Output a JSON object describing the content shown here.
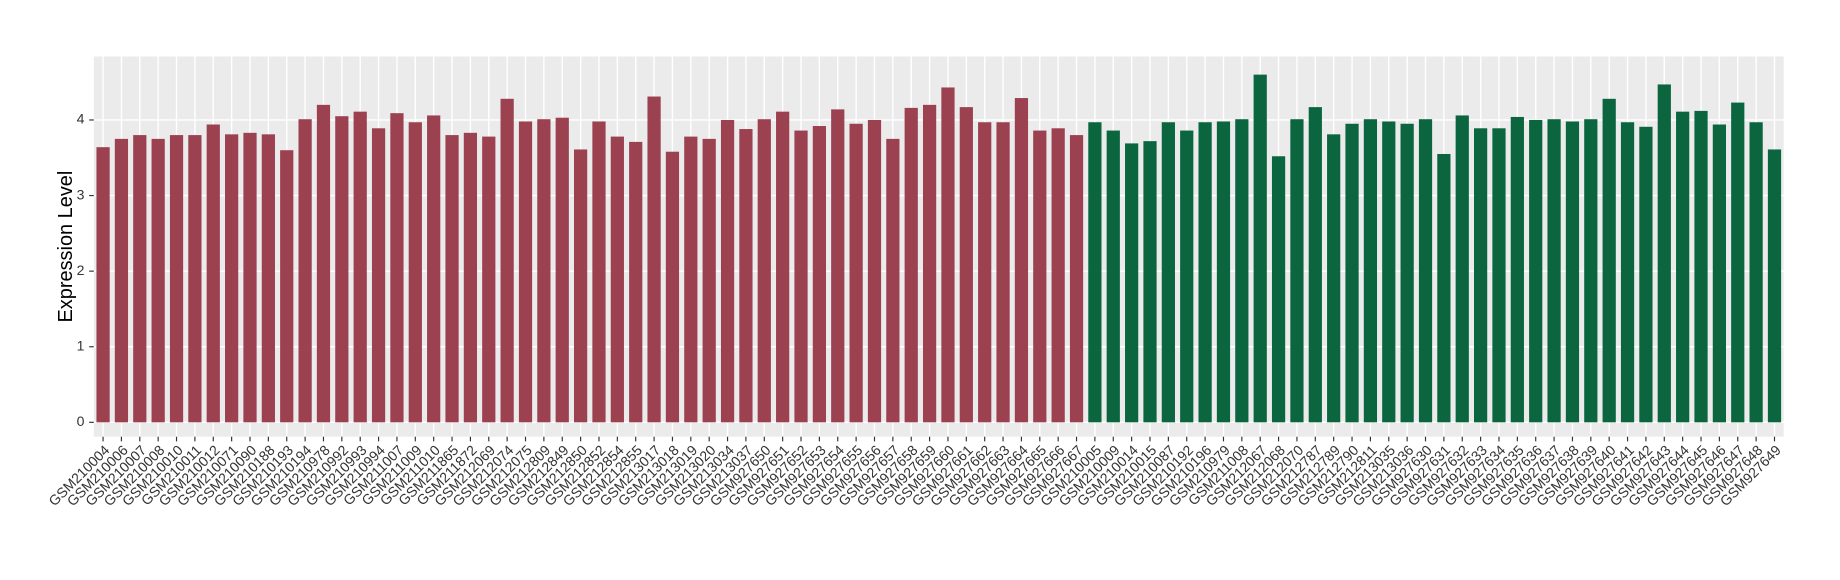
{
  "chart_data": {
    "type": "bar",
    "y_label": "Expression Level",
    "categories": [
      "GSM210004",
      "GSM210006",
      "GSM210007",
      "GSM210008",
      "GSM210010",
      "GSM210011",
      "GSM210012",
      "GSM210071",
      "GSM210090",
      "GSM210188",
      "GSM210193",
      "GSM210194",
      "GSM210978",
      "GSM210992",
      "GSM210993",
      "GSM210994",
      "GSM211007",
      "GSM211009",
      "GSM211010",
      "GSM211865",
      "GSM211872",
      "GSM212069",
      "GSM212074",
      "GSM212075",
      "GSM212809",
      "GSM212849",
      "GSM212850",
      "GSM212852",
      "GSM212854",
      "GSM212855",
      "GSM213017",
      "GSM213018",
      "GSM213019",
      "GSM213020",
      "GSM213034",
      "GSM213037",
      "GSM927650",
      "GSM927651",
      "GSM927652",
      "GSM927653",
      "GSM927654",
      "GSM927655",
      "GSM927656",
      "GSM927657",
      "GSM927658",
      "GSM927659",
      "GSM927660",
      "GSM927661",
      "GSM927662",
      "GSM927663",
      "GSM927664",
      "GSM927665",
      "GSM927666",
      "GSM927667",
      "GSM210005",
      "GSM210009",
      "GSM210014",
      "GSM210015",
      "GSM210087",
      "GSM210192",
      "GSM210196",
      "GSM210979",
      "GSM211008",
      "GSM212067",
      "GSM212068",
      "GSM212070",
      "GSM212787",
      "GSM212789",
      "GSM212790",
      "GSM212811",
      "GSM213035",
      "GSM213036",
      "GSM927630",
      "GSM927631",
      "GSM927632",
      "GSM927633",
      "GSM927634",
      "GSM927635",
      "GSM927636",
      "GSM927637",
      "GSM927638",
      "GSM927639",
      "GSM927640",
      "GSM927641",
      "GSM927642",
      "GSM927643",
      "GSM927644",
      "GSM927645",
      "GSM927646",
      "GSM927647",
      "GSM927648",
      "GSM927649"
    ],
    "values": [
      3.64,
      3.75,
      3.8,
      3.75,
      3.8,
      3.8,
      3.94,
      3.81,
      3.83,
      3.81,
      3.6,
      4.01,
      4.2,
      4.05,
      4.11,
      3.89,
      4.09,
      3.97,
      4.06,
      3.8,
      3.83,
      3.78,
      4.28,
      3.98,
      4.01,
      4.03,
      3.61,
      3.98,
      3.78,
      3.71,
      4.31,
      3.58,
      3.78,
      3.75,
      4.0,
      3.88,
      4.01,
      4.11,
      3.86,
      3.92,
      4.14,
      3.95,
      4.0,
      3.75,
      4.16,
      4.2,
      4.43,
      4.17,
      3.97,
      3.97,
      4.29,
      3.86,
      3.89,
      3.8,
      3.97,
      3.86,
      3.69,
      3.72,
      3.97,
      3.86,
      3.97,
      3.98,
      4.01,
      4.6,
      3.52,
      4.01,
      4.17,
      3.81,
      3.95,
      4.01,
      3.98,
      3.95,
      4.01,
      3.55,
      4.06,
      3.89,
      3.89,
      4.04,
      4.0,
      4.01,
      3.98,
      4.01,
      4.28,
      3.97,
      3.91,
      4.47,
      4.11,
      4.12,
      3.94,
      4.23,
      3.97,
      3.61
    ],
    "colors": [
      "#9b4150",
      "#9b4150",
      "#9b4150",
      "#9b4150",
      "#9b4150",
      "#9b4150",
      "#9b4150",
      "#9b4150",
      "#9b4150",
      "#9b4150",
      "#9b4150",
      "#9b4150",
      "#9b4150",
      "#9b4150",
      "#9b4150",
      "#9b4150",
      "#9b4150",
      "#9b4150",
      "#9b4150",
      "#9b4150",
      "#9b4150",
      "#9b4150",
      "#9b4150",
      "#9b4150",
      "#9b4150",
      "#9b4150",
      "#9b4150",
      "#9b4150",
      "#9b4150",
      "#9b4150",
      "#9b4150",
      "#9b4150",
      "#9b4150",
      "#9b4150",
      "#9b4150",
      "#9b4150",
      "#9b4150",
      "#9b4150",
      "#9b4150",
      "#9b4150",
      "#9b4150",
      "#9b4150",
      "#9b4150",
      "#9b4150",
      "#9b4150",
      "#9b4150",
      "#9b4150",
      "#9b4150",
      "#9b4150",
      "#9b4150",
      "#9b4150",
      "#9b4150",
      "#9b4150",
      "#9b4150",
      "#0b6640",
      "#0b6640",
      "#0b6640",
      "#0b6640",
      "#0b6640",
      "#0b6640",
      "#0b6640",
      "#0b6640",
      "#0b6640",
      "#0b6640",
      "#0b6640",
      "#0b6640",
      "#0b6640",
      "#0b6640",
      "#0b6640",
      "#0b6640",
      "#0b6640",
      "#0b6640",
      "#0b6640",
      "#0b6640",
      "#0b6640",
      "#0b6640",
      "#0b6640",
      "#0b6640",
      "#0b6640",
      "#0b6640",
      "#0b6640",
      "#0b6640",
      "#0b6640",
      "#0b6640",
      "#0b6640",
      "#0b6640",
      "#0b6640",
      "#0b6640",
      "#0b6640",
      "#0b6640",
      "#0b6640",
      "#0b6640"
    ],
    "ylim": [
      -0.19,
      4.84
    ],
    "yticks": [
      0,
      1,
      2,
      3,
      4
    ],
    "grid": true
  }
}
